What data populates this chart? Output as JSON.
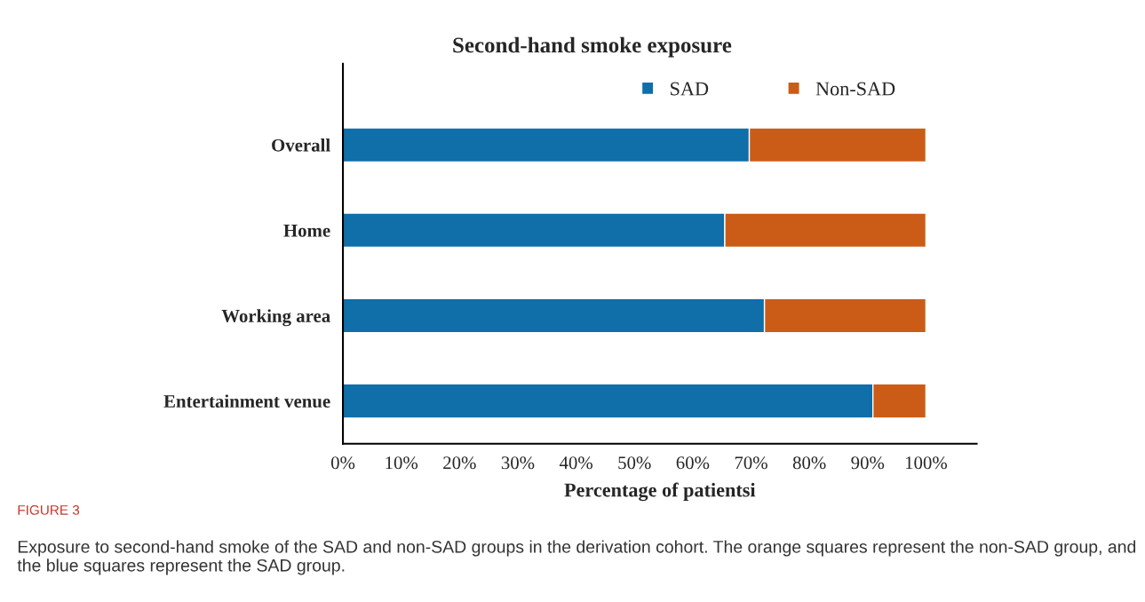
{
  "chart_data": {
    "type": "bar",
    "orientation": "horizontal",
    "stacked": true,
    "title": "Second-hand smoke exposure",
    "xlabel": "Percentage of patientsi",
    "categories": [
      "Overall",
      "Home",
      "Working area",
      "Entertainment venue"
    ],
    "series": [
      {
        "name": "SAD",
        "color": "#106ea8",
        "values": [
          69.7,
          65.5,
          72.3,
          90.9
        ]
      },
      {
        "name": "Non-SAD",
        "color": "#cb5c17",
        "values": [
          30.3,
          34.5,
          27.7,
          9.1
        ]
      }
    ],
    "xlim": [
      0,
      108.7
    ],
    "xticks": [
      {
        "value": 0,
        "label": "0%"
      },
      {
        "value": 10,
        "label": "10%"
      },
      {
        "value": 20,
        "label": "20%"
      },
      {
        "value": 30,
        "label": "30%"
      },
      {
        "value": 40,
        "label": "40%"
      },
      {
        "value": 50,
        "label": "50%"
      },
      {
        "value": 60,
        "label": "60%"
      },
      {
        "value": 70,
        "label": "70%"
      },
      {
        "value": 80,
        "label": "80%"
      },
      {
        "value": 90,
        "label": "90%"
      },
      {
        "value": 100,
        "label": "100%"
      }
    ],
    "legend": "top right",
    "grid": false,
    "annotations": [
      "FIGURE 3",
      "Exposure to second-hand smoke of the SAD and non-SAD groups in the derivation cohort. The orange squares represent the non-SAD group, and the blue squares represent the SAD group."
    ]
  }
}
